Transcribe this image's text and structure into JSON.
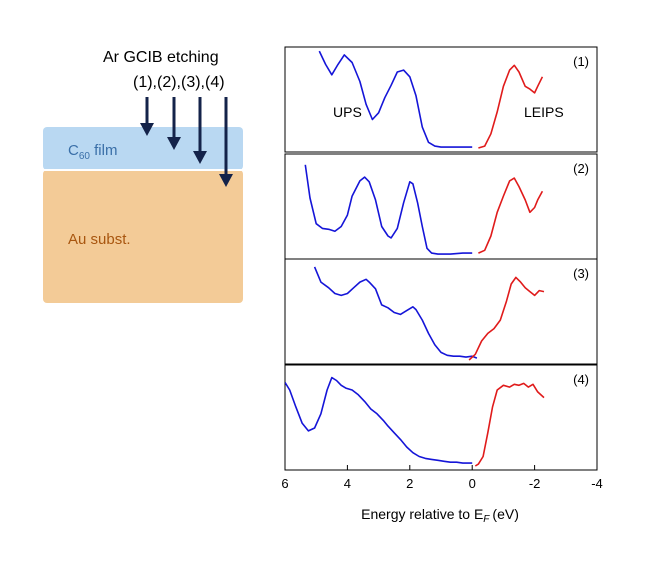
{
  "colors": {
    "ups": "#1515d8",
    "leips": "#e01b1b",
    "film": "#b9d8f2",
    "film_text": "#3a6fa8",
    "substrate": "#f3cb97",
    "substrate_text": "#a8560f",
    "arrow": "#14234a"
  },
  "schematic": {
    "title": "Ar GCIB etching",
    "steps": "(1),(2),(3),(4)",
    "film_label": "C",
    "film_subscript": "60",
    "film_suffix": " film",
    "substrate_label": "Au subst."
  },
  "chart_data": {
    "type": "line",
    "x_axis": {
      "label_prefix": "Energy relative to E",
      "label_subscript": "F",
      "label_suffix": "(eV)",
      "range": [
        6,
        -4
      ],
      "reversed": true,
      "ticks": [
        6,
        4,
        2,
        0,
        -2,
        -4
      ],
      "tick_labels": [
        "6",
        "4",
        "2",
        "0",
        "-2",
        "-4"
      ]
    },
    "y_axis": {
      "label": "",
      "ticks": [],
      "range": [
        0,
        1
      ]
    },
    "grid": false,
    "ups_label": "UPS",
    "leips_label": "LEIPS",
    "panels": [
      {
        "label": "(1)",
        "series": [
          {
            "name": "UPS",
            "points": [
              [
                4.9,
                1.02
              ],
              [
                4.7,
                0.88
              ],
              [
                4.5,
                0.77
              ],
              [
                4.3,
                0.88
              ],
              [
                4.1,
                0.98
              ],
              [
                3.85,
                0.9
              ],
              [
                3.6,
                0.7
              ],
              [
                3.4,
                0.46
              ],
              [
                3.2,
                0.3
              ],
              [
                3.0,
                0.37
              ],
              [
                2.8,
                0.53
              ],
              [
                2.6,
                0.66
              ],
              [
                2.4,
                0.8
              ],
              [
                2.2,
                0.82
              ],
              [
                2.0,
                0.75
              ],
              [
                1.8,
                0.55
              ],
              [
                1.6,
                0.22
              ],
              [
                1.4,
                0.06
              ],
              [
                1.2,
                0.02
              ],
              [
                1.0,
                0.01
              ],
              [
                0.6,
                0.01
              ],
              [
                0.3,
                0.01
              ],
              [
                0.0,
                0.01
              ]
            ]
          },
          {
            "name": "LEIPS",
            "points": [
              [
                -0.2,
                0.0
              ],
              [
                -0.4,
                0.02
              ],
              [
                -0.6,
                0.15
              ],
              [
                -0.8,
                0.38
              ],
              [
                -1.0,
                0.65
              ],
              [
                -1.2,
                0.82
              ],
              [
                -1.35,
                0.87
              ],
              [
                -1.5,
                0.8
              ],
              [
                -1.7,
                0.65
              ],
              [
                -1.85,
                0.62
              ],
              [
                -2.0,
                0.58
              ],
              [
                -2.1,
                0.65
              ],
              [
                -2.25,
                0.75
              ]
            ]
          }
        ]
      },
      {
        "label": "(2)",
        "series": [
          {
            "name": "UPS",
            "points": [
              [
                5.35,
                0.95
              ],
              [
                5.2,
                0.6
              ],
              [
                5.0,
                0.33
              ],
              [
                4.8,
                0.28
              ],
              [
                4.6,
                0.27
              ],
              [
                4.4,
                0.25
              ],
              [
                4.2,
                0.3
              ],
              [
                4.0,
                0.42
              ],
              [
                3.85,
                0.62
              ],
              [
                3.6,
                0.78
              ],
              [
                3.45,
                0.82
              ],
              [
                3.3,
                0.77
              ],
              [
                3.1,
                0.58
              ],
              [
                2.9,
                0.3
              ],
              [
                2.7,
                0.2
              ],
              [
                2.6,
                0.18
              ],
              [
                2.4,
                0.28
              ],
              [
                2.2,
                0.55
              ],
              [
                2.0,
                0.77
              ],
              [
                1.9,
                0.75
              ],
              [
                1.75,
                0.55
              ],
              [
                1.6,
                0.3
              ],
              [
                1.45,
                0.07
              ],
              [
                1.3,
                0.02
              ],
              [
                1.1,
                0.01
              ],
              [
                0.7,
                0.01
              ],
              [
                0.3,
                0.02
              ],
              [
                0.0,
                0.02
              ]
            ]
          },
          {
            "name": "LEIPS",
            "points": [
              [
                -0.2,
                0.02
              ],
              [
                -0.4,
                0.05
              ],
              [
                -0.6,
                0.2
              ],
              [
                -0.8,
                0.45
              ],
              [
                -1.0,
                0.62
              ],
              [
                -1.2,
                0.78
              ],
              [
                -1.35,
                0.81
              ],
              [
                -1.5,
                0.72
              ],
              [
                -1.7,
                0.58
              ],
              [
                -1.85,
                0.45
              ],
              [
                -2.0,
                0.5
              ],
              [
                -2.1,
                0.58
              ],
              [
                -2.25,
                0.67
              ]
            ]
          }
        ]
      },
      {
        "label": "(3)",
        "series": [
          {
            "name": "UPS",
            "points": [
              [
                5.05,
                0.98
              ],
              [
                4.85,
                0.82
              ],
              [
                4.6,
                0.76
              ],
              [
                4.4,
                0.7
              ],
              [
                4.2,
                0.68
              ],
              [
                4.0,
                0.7
              ],
              [
                3.8,
                0.76
              ],
              [
                3.6,
                0.82
              ],
              [
                3.4,
                0.85
              ],
              [
                3.3,
                0.82
              ],
              [
                3.1,
                0.75
              ],
              [
                2.9,
                0.58
              ],
              [
                2.7,
                0.55
              ],
              [
                2.5,
                0.5
              ],
              [
                2.3,
                0.48
              ],
              [
                2.1,
                0.52
              ],
              [
                1.9,
                0.56
              ],
              [
                1.8,
                0.53
              ],
              [
                1.6,
                0.42
              ],
              [
                1.4,
                0.28
              ],
              [
                1.2,
                0.16
              ],
              [
                1.0,
                0.08
              ],
              [
                0.8,
                0.05
              ],
              [
                0.6,
                0.04
              ],
              [
                0.4,
                0.04
              ],
              [
                0.2,
                0.03
              ],
              [
                0.0,
                0.04
              ],
              [
                -0.15,
                0.02
              ]
            ]
          },
          {
            "name": "LEIPS",
            "points": [
              [
                0.1,
                0.0
              ],
              [
                -0.1,
                0.06
              ],
              [
                -0.3,
                0.2
              ],
              [
                -0.5,
                0.28
              ],
              [
                -0.7,
                0.33
              ],
              [
                -0.9,
                0.42
              ],
              [
                -1.1,
                0.62
              ],
              [
                -1.25,
                0.8
              ],
              [
                -1.4,
                0.87
              ],
              [
                -1.55,
                0.82
              ],
              [
                -1.7,
                0.76
              ],
              [
                -1.85,
                0.72
              ],
              [
                -2.0,
                0.68
              ],
              [
                -2.15,
                0.73
              ],
              [
                -2.3,
                0.72
              ]
            ]
          }
        ]
      },
      {
        "label": "(4)",
        "series": [
          {
            "name": "UPS",
            "points": [
              [
                6.0,
                0.88
              ],
              [
                5.85,
                0.8
              ],
              [
                5.65,
                0.62
              ],
              [
                5.45,
                0.45
              ],
              [
                5.25,
                0.37
              ],
              [
                5.05,
                0.4
              ],
              [
                4.85,
                0.55
              ],
              [
                4.65,
                0.8
              ],
              [
                4.5,
                0.93
              ],
              [
                4.35,
                0.9
              ],
              [
                4.2,
                0.85
              ],
              [
                4.05,
                0.82
              ],
              [
                3.85,
                0.8
              ],
              [
                3.65,
                0.75
              ],
              [
                3.45,
                0.68
              ],
              [
                3.25,
                0.6
              ],
              [
                3.05,
                0.55
              ],
              [
                2.85,
                0.48
              ],
              [
                2.7,
                0.42
              ],
              [
                2.5,
                0.35
              ],
              [
                2.3,
                0.28
              ],
              [
                2.1,
                0.2
              ],
              [
                1.9,
                0.14
              ],
              [
                1.7,
                0.1
              ],
              [
                1.5,
                0.08
              ],
              [
                1.3,
                0.07
              ],
              [
                1.1,
                0.06
              ],
              [
                0.9,
                0.05
              ],
              [
                0.7,
                0.04
              ],
              [
                0.5,
                0.04
              ],
              [
                0.3,
                0.03
              ],
              [
                0.1,
                0.03
              ],
              [
                0.0,
                0.03
              ]
            ]
          },
          {
            "name": "LEIPS",
            "points": [
              [
                -0.1,
                0.0
              ],
              [
                -0.2,
                0.02
              ],
              [
                -0.35,
                0.1
              ],
              [
                -0.5,
                0.35
              ],
              [
                -0.65,
                0.62
              ],
              [
                -0.8,
                0.8
              ],
              [
                -1.0,
                0.85
              ],
              [
                -1.2,
                0.83
              ],
              [
                -1.35,
                0.86
              ],
              [
                -1.5,
                0.85
              ],
              [
                -1.65,
                0.87
              ],
              [
                -1.8,
                0.83
              ],
              [
                -1.95,
                0.86
              ],
              [
                -2.1,
                0.78
              ],
              [
                -2.3,
                0.72
              ]
            ]
          }
        ]
      }
    ]
  }
}
